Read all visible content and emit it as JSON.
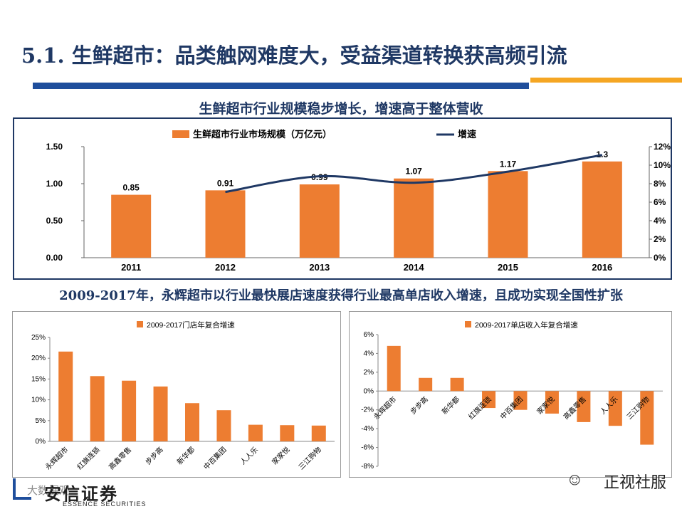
{
  "page": {
    "title": "5.1. 生鲜超市：品类触网难度大，受益渠道转换获高频引流",
    "subtitle_top": "生鲜超市行业规模稳步增长，增速高于整体营收",
    "subtitle_bottom": "2009-2017年，永辉超市以行业最快展店速度获得行业最高单店收入增速，且成功实现全国性扩张",
    "logo_cn": "安信证券",
    "logo_en": "ESSENCE SECURITIES",
    "watermark_left": "大数据观",
    "watermark_right": "正视社服"
  },
  "colors": {
    "orange": "#ed7d31",
    "navy": "#1f3864",
    "line": "#1f3864"
  },
  "chart_data": [
    {
      "type": "bar",
      "categories": [
        "2011",
        "2012",
        "2013",
        "2014",
        "2015",
        "2016"
      ],
      "series": [
        {
          "name": "生鲜超市行业市场规模（万亿元）",
          "values": [
            0.85,
            0.91,
            0.99,
            1.07,
            1.17,
            1.3
          ],
          "axis": "left"
        },
        {
          "name": "增速",
          "type": "line",
          "values": [
            null,
            7.1,
            8.8,
            8.1,
            9.3,
            11.1
          ],
          "axis": "right"
        }
      ],
      "data_labels": [
        "0.85",
        "0.91",
        "0.99",
        "1.07",
        "1.17",
        "1.3"
      ],
      "ylim_left": [
        0,
        1.5
      ],
      "yticks_left": [
        "0.00",
        "0.50",
        "1.00",
        "1.50"
      ],
      "ylim_right": [
        0,
        12
      ],
      "yticks_right": [
        "0%",
        "2%",
        "4%",
        "6%",
        "8%",
        "10%",
        "12%"
      ],
      "legend": "top"
    },
    {
      "type": "bar",
      "title": "2009-2017门店年复合增速",
      "categories": [
        "永辉超市",
        "红旗连锁",
        "高鑫零售",
        "步步高",
        "新华都",
        "中百集团",
        "人人乐",
        "家家悦",
        "三江购物"
      ],
      "values": [
        21.6,
        15.7,
        14.6,
        13.2,
        9.2,
        7.5,
        4.0,
        3.9,
        3.8
      ],
      "ylim": [
        0,
        25
      ],
      "yticks": [
        "0%",
        "5%",
        "10%",
        "15%",
        "20%",
        "25%"
      ],
      "legend": "top"
    },
    {
      "type": "bar",
      "title": "2009-2017单店收入年复合增速",
      "categories": [
        "永辉超市",
        "步步高",
        "新华都",
        "红旗连锁",
        "中百集团",
        "家家悦",
        "高鑫零售",
        "人人乐",
        "三江购物"
      ],
      "values": [
        4.8,
        1.4,
        1.4,
        -1.8,
        -2.0,
        -2.4,
        -3.3,
        -3.7,
        -5.7
      ],
      "ylim": [
        -8,
        6
      ],
      "yticks": [
        "-8%",
        "-6%",
        "-4%",
        "-2%",
        "0%",
        "2%",
        "4%",
        "6%"
      ],
      "legend": "top"
    }
  ]
}
